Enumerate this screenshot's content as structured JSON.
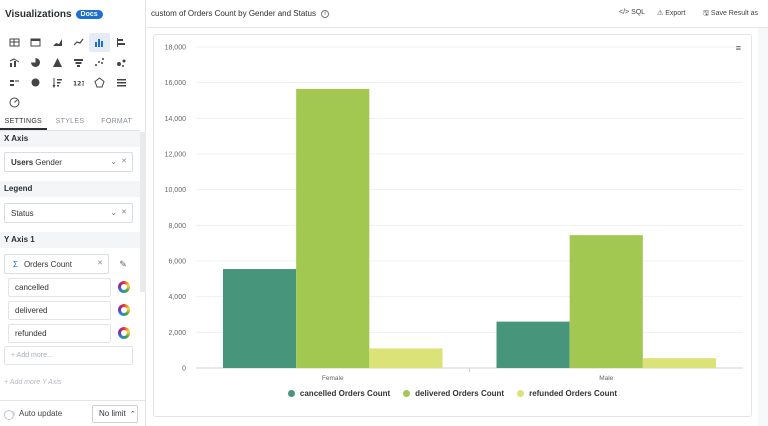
{
  "sidebar": {
    "title": "Visualizations",
    "docs_badge": "Docs",
    "viz_icons": [
      [
        "table-icon",
        "pivot-table-icon",
        "area-icon",
        "line-icon",
        "bar-icon",
        "column-icon"
      ],
      [
        "combo-icon",
        "pie-icon",
        "pyramid-icon",
        "funnel-icon",
        "scatter-icon",
        "bubble-icon"
      ],
      [
        "trend-icon",
        "map-icon",
        "sort-icon",
        "number-icon",
        "radar-icon",
        "list-icon"
      ],
      [
        "gauge-icon"
      ]
    ],
    "tabs": [
      "SETTINGS",
      "STYLES",
      "FORMAT"
    ],
    "x_axis": {
      "heading": "X Axis",
      "field_model": "Users",
      "field_name": "Gender"
    },
    "legend": {
      "heading": "Legend",
      "field": "Status"
    },
    "y_axis": {
      "heading": "Y Axis 1",
      "sigma": "Σ",
      "measure": "Orders Count",
      "series": [
        "cancelled",
        "delivered",
        "refunded"
      ],
      "add_more": "+ Add more..."
    },
    "add_y_axis": "+ Add more Y Axis",
    "auto_update": "Auto update",
    "limit": "No limit",
    "limit_caret": "⌃"
  },
  "topbar": {
    "title": "custom of Orders Count by Gender and Status",
    "info": "i",
    "sql": "</> SQL",
    "export": "⚠ Export",
    "save": "🖫 Save Result as"
  },
  "colors": {
    "cancelled": "#47967b",
    "delivered": "#a2c851",
    "refunded": "#dbe277"
  },
  "chart_data": {
    "type": "bar",
    "title": "",
    "xlabel": "",
    "ylabel": "",
    "categories": [
      "Female",
      "Male"
    ],
    "series": [
      {
        "name": "cancelled Orders Count",
        "values": [
          5550,
          2600
        ]
      },
      {
        "name": "delivered Orders Count",
        "values": [
          15650,
          7450
        ]
      },
      {
        "name": "refunded Orders Count",
        "values": [
          1100,
          550
        ]
      }
    ],
    "ylim": [
      0,
      18000
    ],
    "yticks": [
      0,
      2000,
      4000,
      6000,
      8000,
      10000,
      12000,
      14000,
      16000,
      18000
    ],
    "ytick_labels": [
      "0",
      "2,000",
      "4,000",
      "6,000",
      "8,000",
      "10,000",
      "12,000",
      "14,000",
      "16,000",
      "18,000"
    ],
    "grid": true,
    "legend_position": "bottom"
  }
}
